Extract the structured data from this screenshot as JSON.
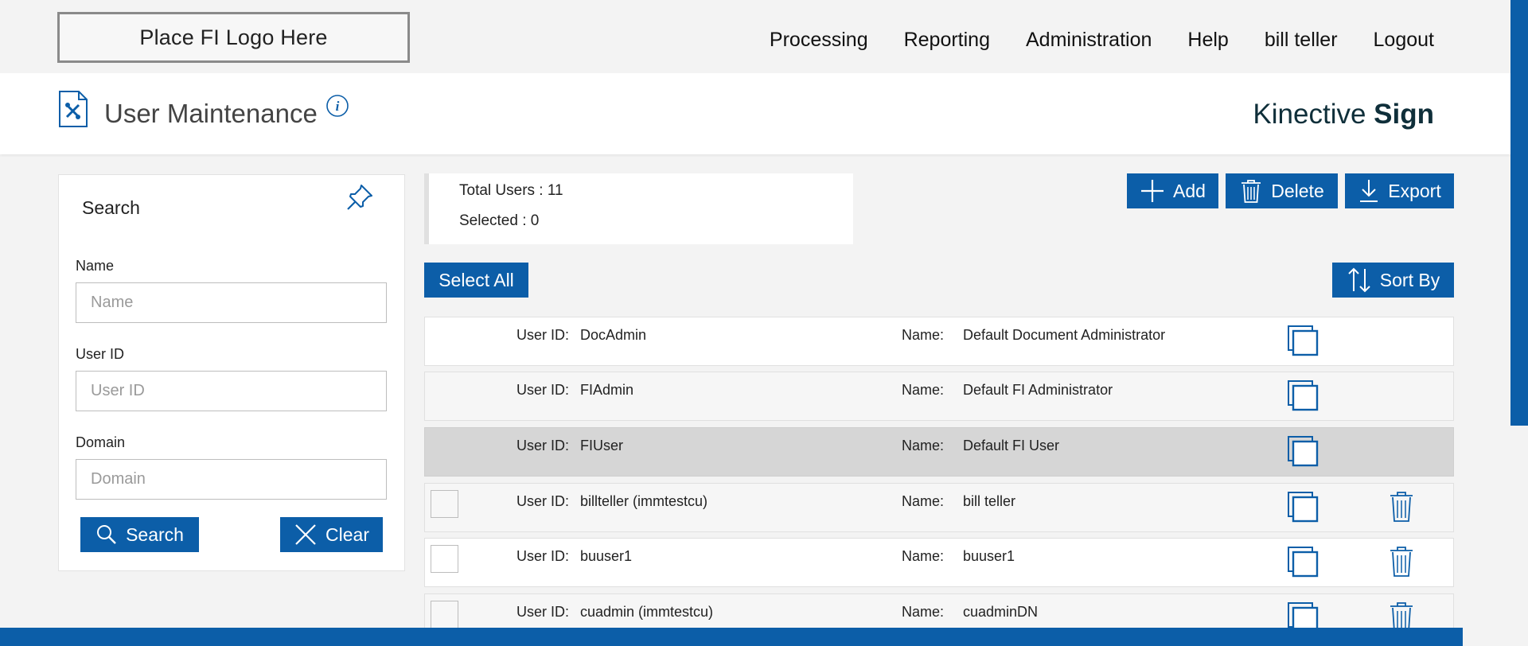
{
  "logo": {
    "text": "Place FI Logo Here"
  },
  "nav": [
    "Processing",
    "Reporting",
    "Administration",
    "Help",
    "bill teller",
    "Logout"
  ],
  "page": {
    "title": "User Maintenance",
    "brand_light": "Kinective ",
    "brand_bold": "Sign"
  },
  "search": {
    "title": "Search",
    "name_label": "Name",
    "name_placeholder": "Name",
    "userid_label": "User ID",
    "userid_placeholder": "User ID",
    "domain_label": "Domain",
    "domain_placeholder": "Domain",
    "search_button": "Search",
    "clear_button": "Clear"
  },
  "summary": {
    "total_users": "Total Users : 11",
    "selected": "Selected : 0"
  },
  "toolbar": {
    "add": "Add",
    "delete": "Delete",
    "export": "Export",
    "select_all": "Select All",
    "sort_by": "Sort By"
  },
  "colors": {
    "primary": "#0c5ea8",
    "selected_row": "#d6d6d6"
  },
  "users": {
    "userid_label": "User ID:",
    "name_label": "Name:",
    "rows": [
      {
        "user_id": "DocAdmin",
        "name": "Default Document Administrator",
        "checkbox": false,
        "delete": false,
        "state": "white"
      },
      {
        "user_id": "FIAdmin",
        "name": "Default FI Administrator",
        "checkbox": false,
        "delete": false,
        "state": "grey"
      },
      {
        "user_id": "FIUser",
        "name": "Default FI User",
        "checkbox": false,
        "delete": false,
        "state": "selected"
      },
      {
        "user_id": "billteller (immtestcu)",
        "name": "bill teller",
        "checkbox": true,
        "delete": true,
        "state": "grey"
      },
      {
        "user_id": "buuser1",
        "name": "buuser1",
        "checkbox": true,
        "delete": true,
        "state": "white"
      },
      {
        "user_id": "cuadmin (immtestcu)",
        "name": "cuadminDN",
        "checkbox": true,
        "delete": true,
        "state": "grey"
      }
    ]
  }
}
